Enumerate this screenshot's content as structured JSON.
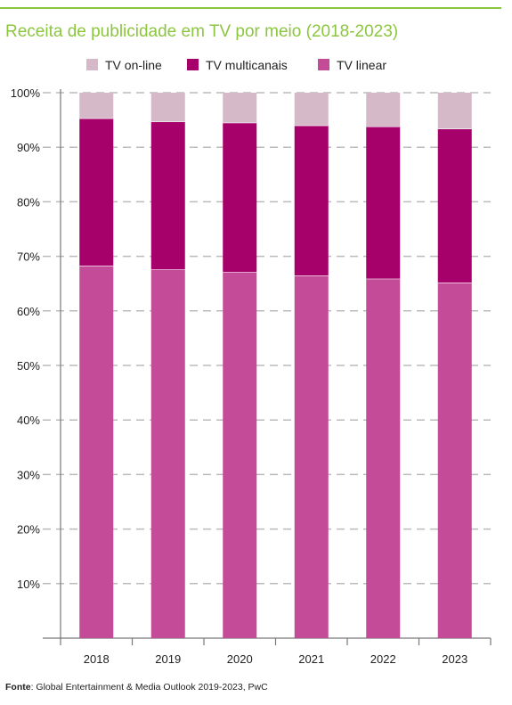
{
  "title": "Receita de publicidade em TV por meio (2018-2023)",
  "footer": {
    "label": "Fonte",
    "text": ": Global Entertainment & Media Outlook 2019-2023, PwC"
  },
  "colors": {
    "accent": "#8cc63f",
    "online": "#d5b9c9",
    "multicanais": "#a6006a",
    "linear": "#c34b97",
    "grid": "#bbbbbb",
    "axis": "#777777"
  },
  "chart_data": {
    "type": "bar",
    "stacked": true,
    "categories": [
      "2018",
      "2019",
      "2020",
      "2021",
      "2022",
      "2023"
    ],
    "series": [
      {
        "name": "TV linear",
        "color": "#c34b97",
        "values": [
          68.3,
          67.6,
          67.1,
          66.5,
          65.9,
          65.2
        ]
      },
      {
        "name": "TV multicanais",
        "color": "#a6006a",
        "values": [
          27.0,
          27.1,
          27.4,
          27.5,
          27.9,
          28.2
        ]
      },
      {
        "name": "TV on-line",
        "color": "#d5b9c9",
        "values": [
          4.7,
          5.3,
          5.5,
          6.0,
          6.2,
          6.6
        ]
      }
    ],
    "legend_order": [
      "TV on-line",
      "TV multicanais",
      "TV linear"
    ],
    "yticks": [
      "10%",
      "20%",
      "30%",
      "40%",
      "50%",
      "60%",
      "70%",
      "80%",
      "90%",
      "100%"
    ],
    "ylim": [
      0,
      100
    ],
    "grid": true,
    "legend_position": "top"
  }
}
